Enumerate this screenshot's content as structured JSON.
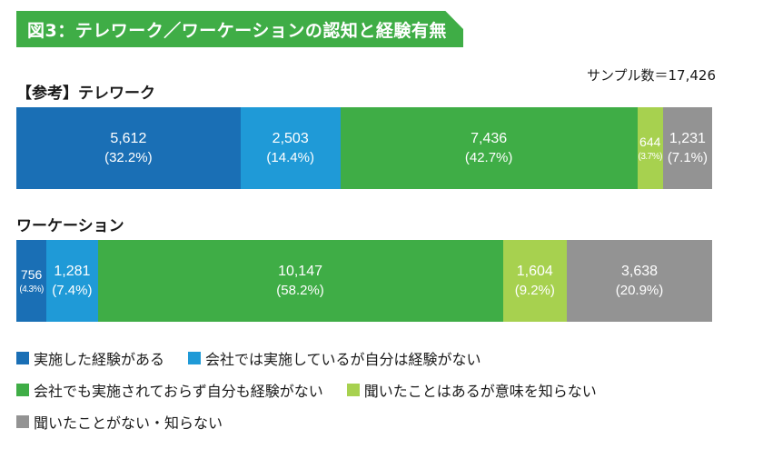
{
  "header": {
    "title": "図3：テレワーク／ワーケーションの認知と経験有無",
    "sample": "サンプル数＝17,426"
  },
  "colors": {
    "experienced": "#1a6fb5",
    "company_only": "#1f9ad7",
    "company_none": "#3fad46",
    "heard": "#a7d14f",
    "unknown": "#939393",
    "banner": "#3fad46"
  },
  "chart_data": {
    "type": "bar",
    "orientation": "horizontal-stacked-100",
    "title": "図3：テレワーク／ワーケーションの認知と経験有無",
    "categories": [
      "【参考】テレワーク",
      "ワーケーション"
    ],
    "series": [
      {
        "name": "実施した経験がある",
        "color": "#1a6fb5",
        "values": [
          5612,
          756
        ],
        "value_labels": [
          "5,612",
          "756"
        ],
        "percent_labels": [
          "(32.2%)",
          "(4.3%)"
        ]
      },
      {
        "name": "会社では実施しているが自分は経験がない",
        "color": "#1f9ad7",
        "values": [
          2503,
          1281
        ],
        "value_labels": [
          "2,503",
          "1,281"
        ],
        "percent_labels": [
          "(14.4%)",
          "(7.4%)"
        ]
      },
      {
        "name": "会社でも実施されておらず自分も経験がない",
        "color": "#3fad46",
        "values": [
          7436,
          10147
        ],
        "value_labels": [
          "7,436",
          "10,147"
        ],
        "percent_labels": [
          "(42.7%)",
          "(58.2%)"
        ]
      },
      {
        "name": "聞いたことはあるが意味を知らない",
        "color": "#a7d14f",
        "values": [
          644,
          1604
        ],
        "value_labels": [
          "644",
          "1,604"
        ],
        "percent_labels": [
          "(3.7%)",
          "(9.2%)"
        ]
      },
      {
        "name": "聞いたことがない・知らない",
        "color": "#939393",
        "values": [
          1231,
          3638
        ],
        "value_labels": [
          "1,231",
          "3,638"
        ],
        "percent_labels": [
          "(7.1%)",
          "(20.9%)"
        ]
      }
    ],
    "legend": "bottom"
  }
}
